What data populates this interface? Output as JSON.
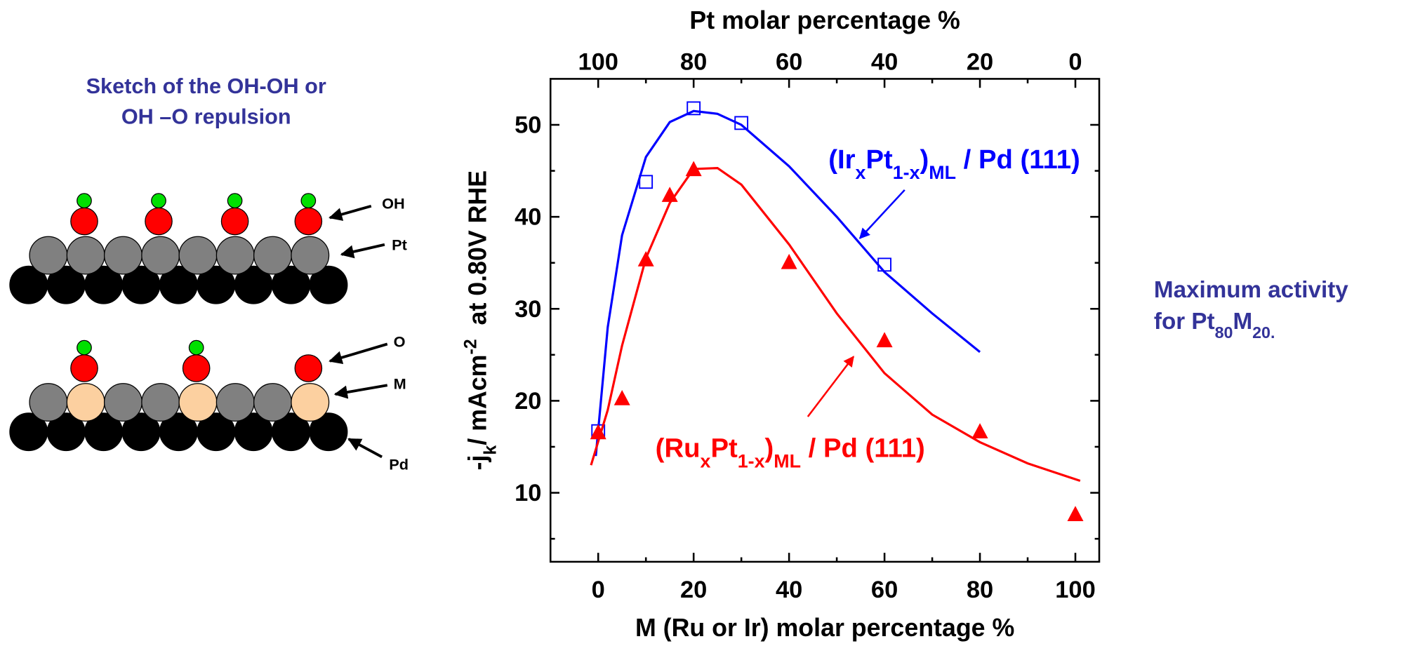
{
  "chart_data": {
    "type": "scatter",
    "xlabel": "M (Ru or Ir) molar percentage %",
    "x2label": "Pt molar percentage %",
    "ylabel": [
      {
        "text": "-j"
      },
      {
        "text": "k",
        "sub": true
      },
      {
        "text": "/ mAcm"
      },
      {
        "text": "-2",
        "sup": true
      },
      {
        "text": "  at 0.80V RHE"
      }
    ],
    "xlim": [
      -10,
      105
    ],
    "xticks": [
      0,
      20,
      40,
      60,
      80,
      100
    ],
    "xminorticks": [
      10,
      30,
      50,
      70,
      90
    ],
    "x2lim": [
      110,
      -5
    ],
    "x2ticks": [
      100,
      80,
      60,
      40,
      20,
      0
    ],
    "x2minorticks": [
      90,
      70,
      50,
      30,
      10
    ],
    "ylim": [
      2.5,
      55
    ],
    "yticks": [
      10,
      20,
      30,
      40,
      50
    ],
    "yminorticks": [
      5,
      15,
      25,
      35,
      45
    ],
    "series": [
      {
        "label": [
          {
            "text": "(Ir"
          },
          {
            "text": "x",
            "sub": true
          },
          {
            "text": "Pt"
          },
          {
            "text": "1-x",
            "sub": true
          },
          {
            "text": ")"
          },
          {
            "text": "ML",
            "sub": true
          },
          {
            "text": " / Pd (111)"
          }
        ],
        "color": "#0000ff",
        "marker": "open-square",
        "x": [
          0,
          10,
          20,
          30,
          60
        ],
        "values": [
          16.7,
          43.8,
          51.8,
          50.2,
          34.8
        ],
        "fit": {
          "x": [
            -0.5,
            2,
            5,
            10,
            15,
            20,
            25,
            30,
            40,
            50,
            60,
            70,
            80
          ],
          "values": [
            14,
            28,
            38,
            46.5,
            50.3,
            51.5,
            51.2,
            50,
            45.5,
            40,
            34,
            29.5,
            25.3
          ]
        }
      },
      {
        "label": [
          {
            "text": "(Ru"
          },
          {
            "text": "x",
            "sub": true
          },
          {
            "text": "Pt"
          },
          {
            "text": "1-x",
            "sub": true
          },
          {
            "text": ")"
          },
          {
            "text": "ML",
            "sub": true
          },
          {
            "text": " / Pd (111)"
          }
        ],
        "color": "#ff0000",
        "marker": "filled-triangle",
        "x": [
          0,
          5,
          10,
          15,
          20,
          40,
          60,
          80,
          100
        ],
        "values": [
          16.5,
          20.2,
          35.3,
          42.3,
          45.1,
          35,
          26.5,
          16.6,
          7.6
        ],
        "fit": {
          "x": [
            -1.5,
            2,
            5,
            10,
            15,
            20,
            25,
            30,
            40,
            50,
            60,
            70,
            80,
            90,
            101
          ],
          "values": [
            13,
            19,
            26,
            35.5,
            41.5,
            45.2,
            45.3,
            43.5,
            37,
            29.5,
            23,
            18.5,
            15.5,
            13.2,
            11.3
          ]
        }
      }
    ]
  },
  "sketch": {
    "title": [
      "Sketch of the OH-OH or",
      "OH –O repulsion"
    ],
    "labels": [
      "OH",
      "Pt",
      "O",
      "M",
      "Pd"
    ]
  },
  "note": [
    [
      {
        "text": "Maximum activity"
      }
    ],
    [
      {
        "text": "for Pt"
      },
      {
        "text": "80",
        "sub": true
      },
      {
        "text": "M"
      },
      {
        "text": "20",
        "sub": true
      },
      {
        "text": ".",
        "sub": true
      }
    ]
  ]
}
